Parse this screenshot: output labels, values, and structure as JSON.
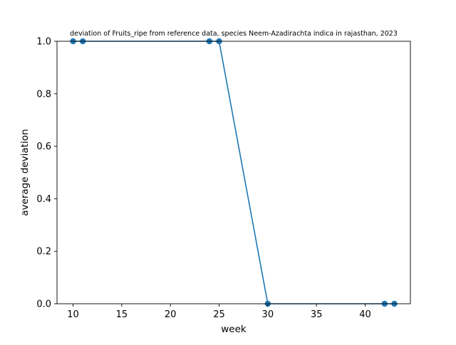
{
  "chart_data": {
    "type": "line",
    "title": "deviation of Fruits_ripe from reference data, species Neem-Azadirachta indica in rajasthan, 2023",
    "xlabel": "week",
    "ylabel": "average deviation",
    "xlim": [
      8.35,
      44.65
    ],
    "ylim": [
      0,
      1
    ],
    "x_ticks": [
      10,
      15,
      20,
      25,
      30,
      35,
      40
    ],
    "x_tick_labels": [
      "10",
      "15",
      "20",
      "25",
      "30",
      "35",
      "40"
    ],
    "y_ticks": [
      0,
      0.2,
      0.4,
      0.6,
      0.8,
      1.0
    ],
    "y_tick_labels": [
      "0.0",
      "0.2",
      "0.4",
      "0.6",
      "0.8",
      "1.0"
    ],
    "grid": false,
    "series": [
      {
        "x": [
          10,
          11,
          24,
          25,
          30,
          42,
          43
        ],
        "y": [
          1.0,
          1.0,
          1.0,
          1.0,
          0.0,
          0.0,
          0.0
        ],
        "color": "#1f77b4",
        "marker": "circle"
      }
    ]
  }
}
